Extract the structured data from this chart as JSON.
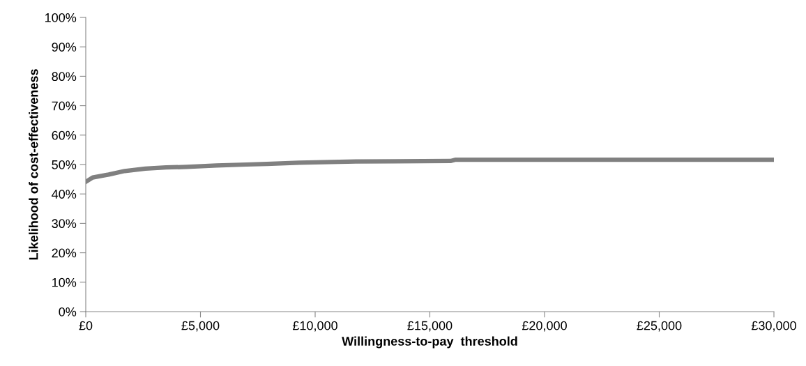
{
  "chart_data": {
    "type": "line",
    "xlabel": "Willingness-to-pay  threshold",
    "ylabel": "Likelihood of cost-effectiveness",
    "x": [
      0,
      300,
      1000,
      1700,
      2600,
      3500,
      4400,
      5700,
      7000,
      7900,
      9300,
      11400,
      13500,
      15900,
      16100,
      20000,
      25000,
      30000
    ],
    "series": [
      {
        "color": "#808080",
        "values": [
          44.1,
          45.6,
          46.6,
          47.8,
          48.6,
          49.0,
          49.2,
          49.7,
          50.0,
          50.2,
          50.6,
          51.0,
          51.1,
          51.2,
          51.6,
          51.6,
          51.6,
          51.6
        ]
      }
    ],
    "xlim": [
      0,
      30000
    ],
    "xticks": [
      {
        "value": 0,
        "label": "£0"
      },
      {
        "value": 5000,
        "label": "£5,000"
      },
      {
        "value": 10000,
        "label": "£10,000"
      },
      {
        "value": 15000,
        "label": "£15,000"
      },
      {
        "value": 20000,
        "label": "£20,000"
      },
      {
        "value": 25000,
        "label": "£25,000"
      },
      {
        "value": 30000,
        "label": "£30,000"
      }
    ],
    "ylim": [
      0,
      100
    ],
    "yticks": [
      {
        "value": 0,
        "label": "0%"
      },
      {
        "value": 10,
        "label": "10%"
      },
      {
        "value": 20,
        "label": "20%"
      },
      {
        "value": 30,
        "label": "30%"
      },
      {
        "value": 40,
        "label": "40%"
      },
      {
        "value": 50,
        "label": "50%"
      },
      {
        "value": 60,
        "label": "60%"
      },
      {
        "value": 70,
        "label": "70%"
      },
      {
        "value": 80,
        "label": "80%"
      },
      {
        "value": 90,
        "label": "90%"
      },
      {
        "value": 100,
        "label": "100%"
      }
    ],
    "line_style": "solid",
    "marker": "none"
  }
}
